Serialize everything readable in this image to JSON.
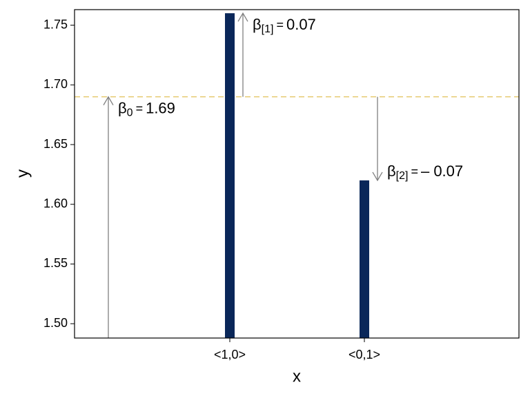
{
  "chart_data": {
    "type": "bar",
    "x_label": "x",
    "y_label": "y",
    "categories": [
      "<1,0>",
      "<0,1>"
    ],
    "values": [
      1.76,
      1.62
    ],
    "color": "#0a2759",
    "ylim": [
      1.488,
      1.763
    ],
    "yticks": [
      {
        "value": 1.5,
        "label": "1.50"
      },
      1.55,
      {
        "value": 1.6,
        "label": "1.60"
      },
      1.65,
      {
        "value": 1.7,
        "label": "1.70"
      },
      1.75
    ],
    "reference_color": "#e2c25a",
    "arrow_color": "#808080",
    "annotations": [
      {
        "symbol": "β",
        "subscript": "0",
        "operator": "=",
        "value": 1.69
      },
      {
        "symbol": "β",
        "subscript": "[1]",
        "operator": "=",
        "value": 0.07
      },
      {
        "symbol": "β",
        "subscript": "[2]",
        "operator": "=",
        "value": -0.07,
        "value_label": "– 0.07"
      }
    ]
  }
}
